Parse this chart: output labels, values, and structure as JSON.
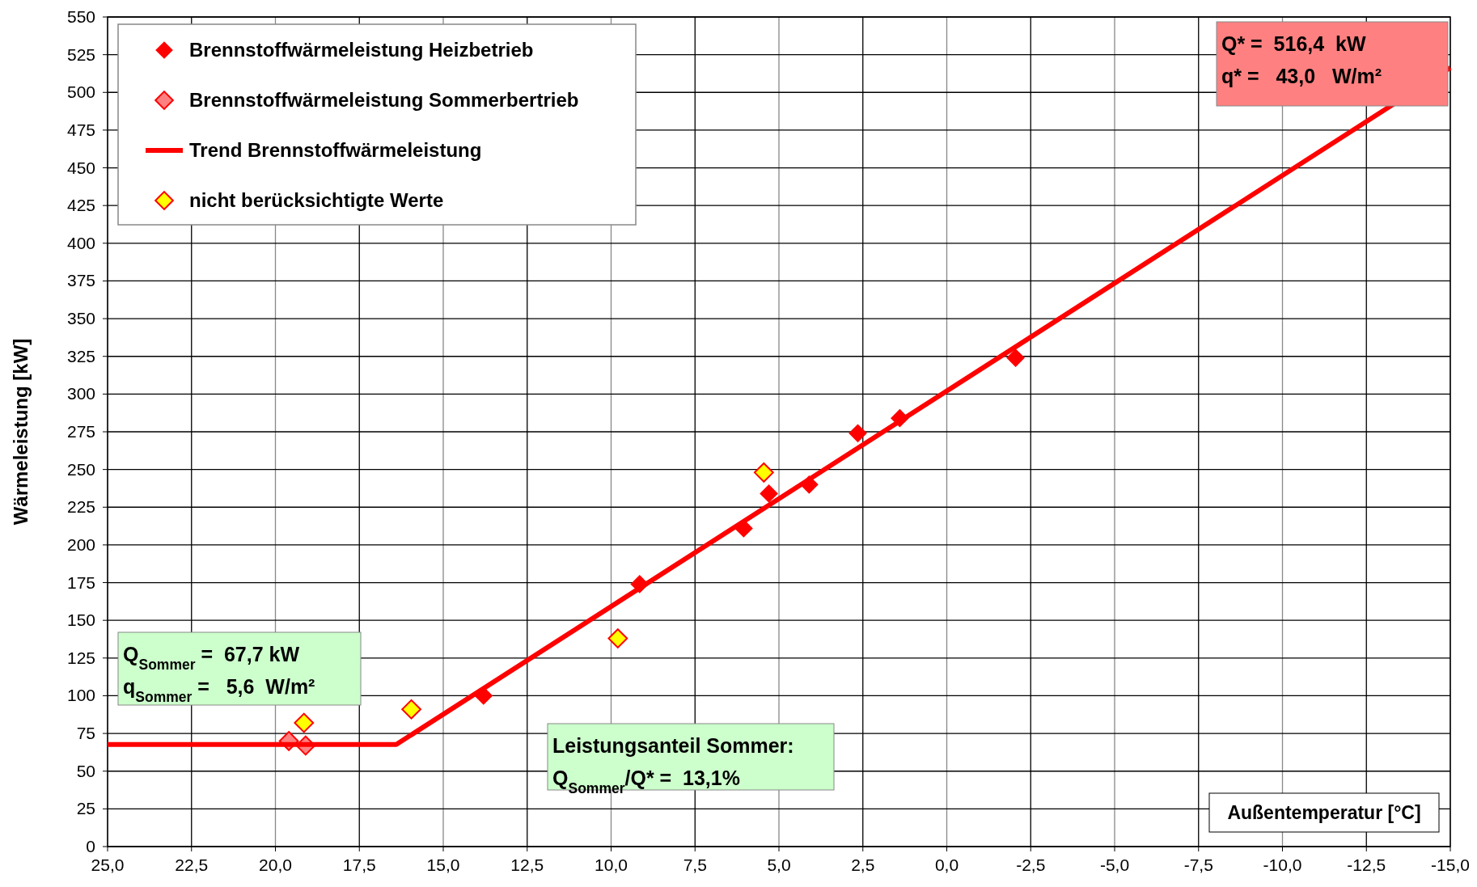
{
  "chart_data": {
    "type": "scatter",
    "xlabel": "Außentemperatur [°C]",
    "ylabel": "Wärmeleistung [kW]",
    "xlim": [
      25,
      -15
    ],
    "xticks": [
      {
        "value": 25,
        "label": "25,0"
      },
      {
        "value": 22.5,
        "label": "22,5"
      },
      {
        "value": 20,
        "label": "20,0"
      },
      {
        "value": 17.5,
        "label": "17,5"
      },
      {
        "value": 15,
        "label": "15,0"
      },
      {
        "value": 12.5,
        "label": "12,5"
      },
      {
        "value": 10,
        "label": "10,0"
      },
      {
        "value": 7.5,
        "label": "7,5"
      },
      {
        "value": 5,
        "label": "5,0"
      },
      {
        "value": 2.5,
        "label": "2,5"
      },
      {
        "value": 0,
        "label": "0,0"
      },
      {
        "value": -2.5,
        "label": "-2,5"
      },
      {
        "value": -5,
        "label": "-5,0"
      },
      {
        "value": -7.5,
        "label": "-7,5"
      },
      {
        "value": -10,
        "label": "-10,0"
      },
      {
        "value": -12.5,
        "label": "-12,5"
      },
      {
        "value": -15,
        "label": "-15,0"
      }
    ],
    "ylim": [
      0,
      550
    ],
    "yticks": [
      0,
      25,
      50,
      75,
      100,
      125,
      150,
      175,
      200,
      225,
      250,
      275,
      300,
      325,
      350,
      375,
      400,
      425,
      450,
      475,
      500,
      525,
      550
    ],
    "grid": true,
    "legend": "top left",
    "marker": "diamond",
    "series": [
      {
        "name": "Brennstoffwärmeleistung Heizbetrieb",
        "color": "#ff0000",
        "x": [
          13.8,
          9.15,
          6.05,
          5.3,
          4.1,
          2.65,
          1.4,
          -2.05
        ],
        "values": [
          100,
          174,
          211,
          234,
          240,
          274,
          284,
          324
        ]
      },
      {
        "name": "Brennstoffwärmeleistung Sommerbertrieb",
        "color": "#ff8080",
        "x": [
          19.6,
          19.1
        ],
        "values": [
          70,
          67
        ]
      },
      {
        "name": "Trend Brennstoffwärmeleistung",
        "type": "line",
        "line_style": "solid",
        "marker": "none",
        "color": "#ff0000",
        "x": [
          25,
          16.4,
          -15
        ],
        "values": [
          67.7,
          67.7,
          516.4
        ]
      },
      {
        "name": "nicht berücksichtigte Werte",
        "color": "#ffff00",
        "x": [
          19.15,
          15.95,
          9.8,
          5.45
        ],
        "values": [
          82,
          91,
          138,
          248
        ]
      }
    ],
    "annotations": [
      "Q* =  516,4  kW\nq* =   43,0   W/m²",
      "Q$_{Sommer}$ =  67,7 kW\nq$_{Sommer}$ =   5,6  W/m²",
      "Leistungsanteil Sommer:\nQ$_{Sommer}$/Q* =  13,1%"
    ]
  }
}
